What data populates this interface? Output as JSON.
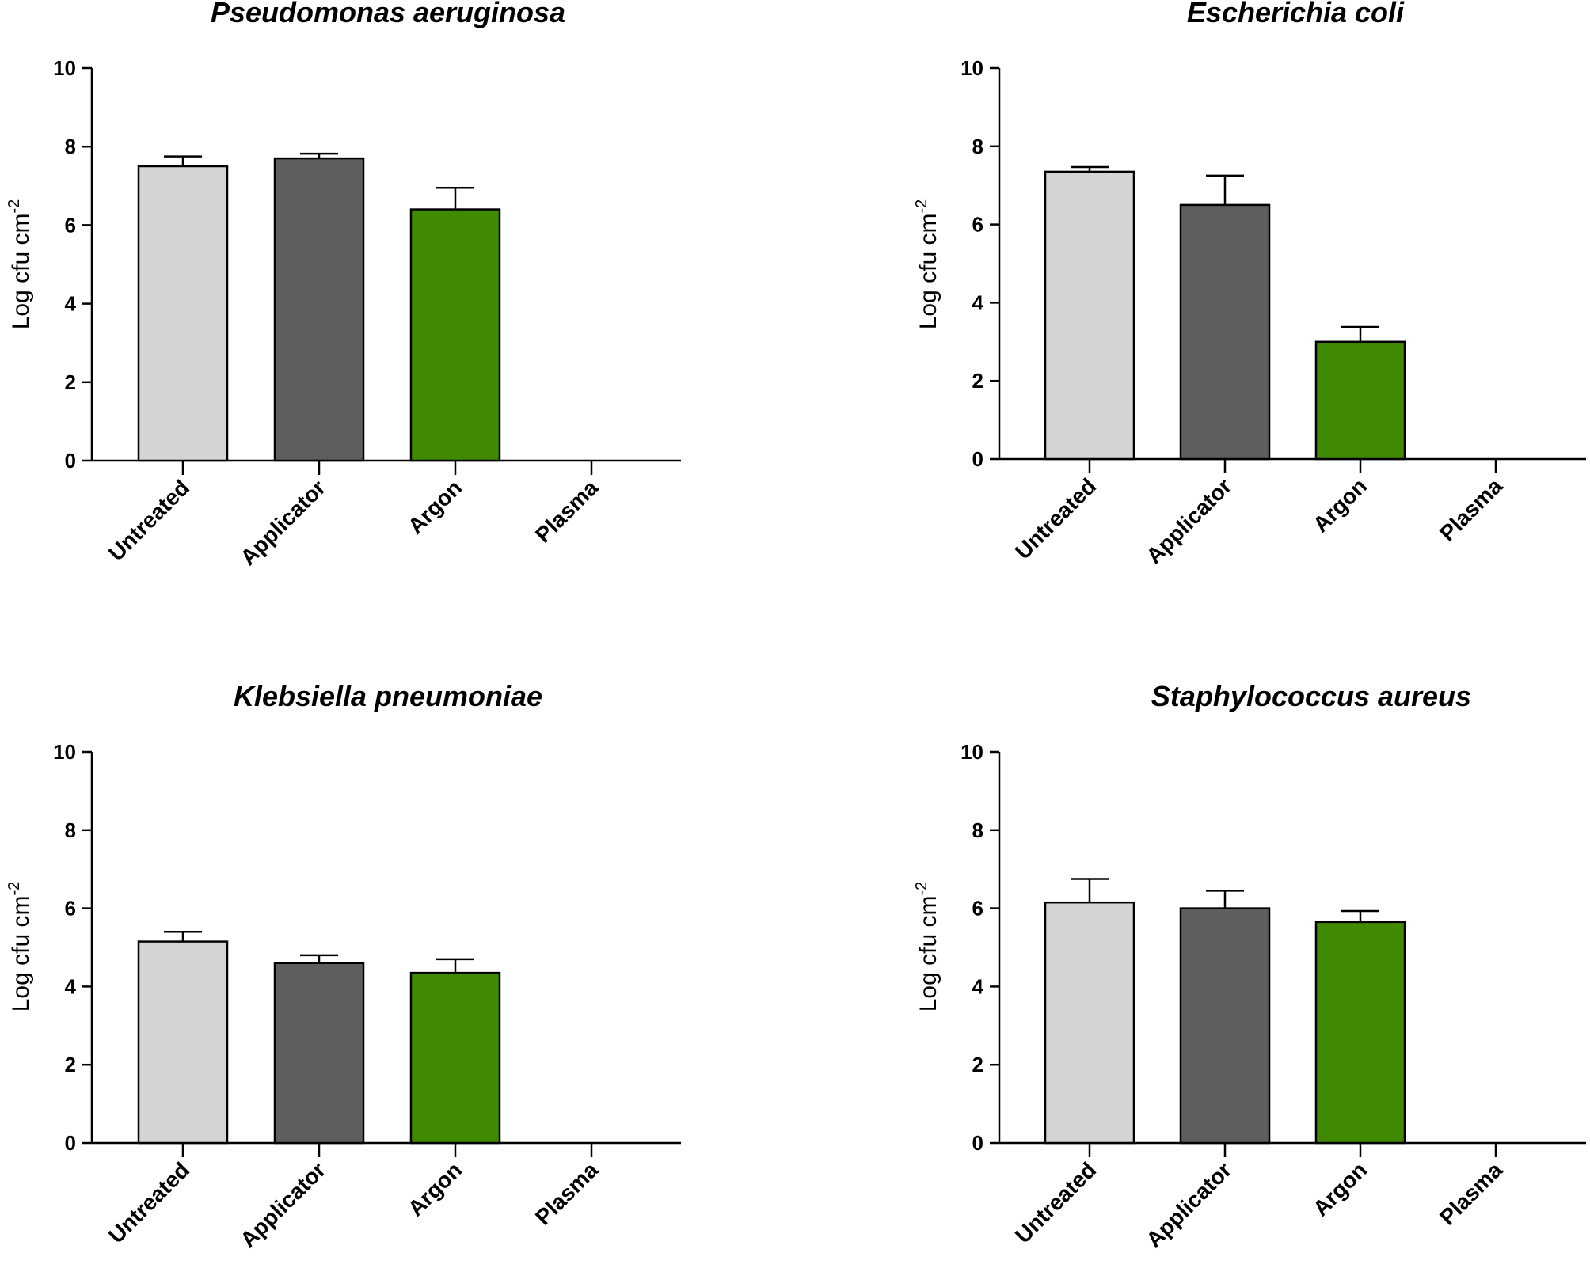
{
  "chart_data": [
    {
      "type": "bar",
      "title": "Pseudomonas aeruginosa",
      "ylabel": "Log cfu cm",
      "ylabel_superscript": "-2",
      "xlabel": "",
      "ylim": [
        0,
        10
      ],
      "yticks": [
        0,
        2,
        4,
        6,
        8,
        10
      ],
      "categories": [
        "Untreated",
        "Applicator",
        "Argon",
        "Plasma"
      ],
      "values": [
        7.5,
        7.7,
        6.4,
        0
      ],
      "errors": [
        0.25,
        0.12,
        0.55,
        0
      ],
      "colors": [
        "#d4d4d4",
        "#5e5e5e",
        "#3f8a00",
        "#ffffff"
      ]
    },
    {
      "type": "bar",
      "title": "Escherichia coli",
      "ylabel": "Log cfu cm",
      "ylabel_superscript": "-2",
      "xlabel": "",
      "ylim": [
        0,
        10
      ],
      "yticks": [
        0,
        2,
        4,
        6,
        8,
        10
      ],
      "categories": [
        "Untreated",
        "Applicator",
        "Argon",
        "Plasma"
      ],
      "values": [
        7.35,
        6.5,
        3.0,
        0
      ],
      "errors": [
        0.12,
        0.75,
        0.38,
        0
      ],
      "colors": [
        "#d4d4d4",
        "#5e5e5e",
        "#3f8a00",
        "#ffffff"
      ]
    },
    {
      "type": "bar",
      "title": "Klebsiella pneumoniae",
      "ylabel": "Log cfu cm",
      "ylabel_superscript": "-2",
      "xlabel": "",
      "ylim": [
        0,
        10
      ],
      "yticks": [
        0,
        2,
        4,
        6,
        8,
        10
      ],
      "categories": [
        "Untreated",
        "Applicator",
        "Argon",
        "Plasma"
      ],
      "values": [
        5.15,
        4.6,
        4.35,
        0
      ],
      "errors": [
        0.25,
        0.2,
        0.35,
        0
      ],
      "colors": [
        "#d4d4d4",
        "#5e5e5e",
        "#3f8a00",
        "#ffffff"
      ]
    },
    {
      "type": "bar",
      "title": "Staphylococcus aureus",
      "ylabel": "Log cfu cm",
      "ylabel_superscript": "-2",
      "xlabel": "",
      "ylim": [
        0,
        10
      ],
      "yticks": [
        0,
        2,
        4,
        6,
        8,
        10
      ],
      "categories": [
        "Untreated",
        "Applicator",
        "Argon",
        "Plasma"
      ],
      "values": [
        6.15,
        6.0,
        5.65,
        0
      ],
      "errors": [
        0.6,
        0.45,
        0.28,
        0
      ],
      "colors": [
        "#d4d4d4",
        "#5e5e5e",
        "#3f8a00",
        "#ffffff"
      ]
    }
  ]
}
